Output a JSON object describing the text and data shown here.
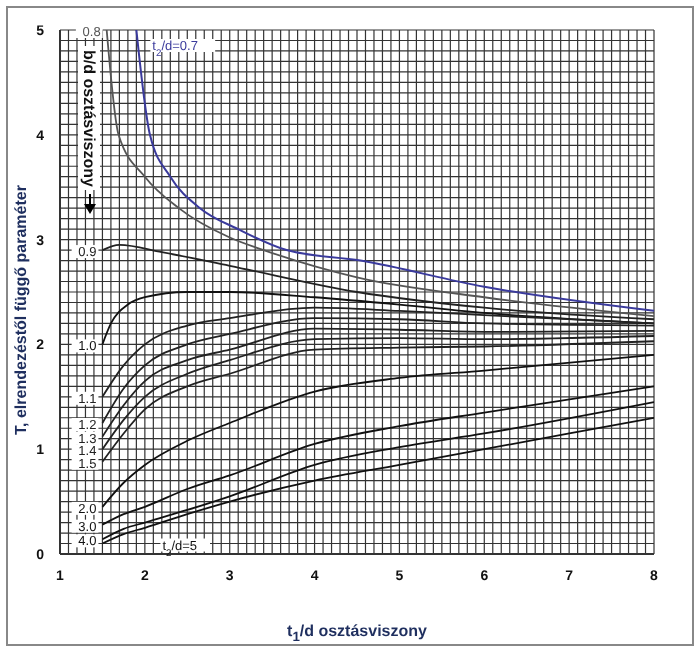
{
  "chart_data": {
    "type": "line",
    "xlabel": "t$_{1}$/d osztásviszony",
    "ylabel": "T, elrendezéstől függő paraméter",
    "annotations": [
      "b/d osztásviszony"
    ],
    "xlim": [
      1,
      8
    ],
    "ylim": [
      0,
      5
    ],
    "grid": true,
    "xticks": [
      1,
      {
        "value": 1.1,
        "label": null
      },
      {
        "value": 1.2,
        "label": null
      },
      {
        "value": 1.3,
        "label": null
      },
      {
        "value": 1.4,
        "label": null
      },
      {
        "value": 1.5,
        "label": null
      },
      {
        "value": 1.6,
        "label": null
      },
      {
        "value": 1.7,
        "label": null
      },
      {
        "value": 1.8,
        "label": null
      },
      {
        "value": 1.9,
        "label": null
      },
      2,
      {
        "value": 2.1,
        "label": null
      },
      {
        "value": 2.2,
        "label": null
      },
      {
        "value": 2.3,
        "label": null
      },
      {
        "value": 2.4,
        "label": null
      },
      {
        "value": 2.5,
        "label": null
      },
      {
        "value": 2.6,
        "label": null
      },
      {
        "value": 2.7,
        "label": null
      },
      {
        "value": 2.8,
        "label": null
      },
      {
        "value": 2.9,
        "label": null
      },
      3,
      {
        "value": 3.1,
        "label": null
      },
      {
        "value": 3.2,
        "label": null
      },
      {
        "value": 3.3,
        "label": null
      },
      {
        "value": 3.4,
        "label": null
      },
      {
        "value": 3.5,
        "label": null
      },
      {
        "value": 3.6,
        "label": null
      },
      {
        "value": 3.7,
        "label": null
      },
      {
        "value": 3.8,
        "label": null
      },
      {
        "value": 3.9,
        "label": null
      },
      4,
      {
        "value": 4.1,
        "label": null
      },
      {
        "value": 4.2,
        "label": null
      },
      {
        "value": 4.3,
        "label": null
      },
      {
        "value": 4.4,
        "label": null
      },
      {
        "value": 4.5,
        "label": null
      },
      {
        "value": 4.6,
        "label": null
      },
      {
        "value": 4.7,
        "label": null
      },
      {
        "value": 4.8,
        "label": null
      },
      {
        "value": 4.9,
        "label": null
      },
      5,
      {
        "value": 5.1,
        "label": null
      },
      {
        "value": 5.2,
        "label": null
      },
      {
        "value": 5.3,
        "label": null
      },
      {
        "value": 5.4,
        "label": null
      },
      {
        "value": 5.5,
        "label": null
      },
      {
        "value": 5.6,
        "label": null
      },
      {
        "value": 5.7,
        "label": null
      },
      {
        "value": 5.8,
        "label": null
      },
      {
        "value": 5.9,
        "label": null
      },
      6,
      {
        "value": 6.1,
        "label": null
      },
      {
        "value": 6.2,
        "label": null
      },
      {
        "value": 6.3,
        "label": null
      },
      {
        "value": 6.4,
        "label": null
      },
      {
        "value": 6.5,
        "label": null
      },
      {
        "value": 6.6,
        "label": null
      },
      {
        "value": 6.7,
        "label": null
      },
      {
        "value": 6.8,
        "label": null
      },
      {
        "value": 6.9,
        "label": null
      },
      7,
      {
        "value": 7.1,
        "label": null
      },
      {
        "value": 7.2,
        "label": null
      },
      {
        "value": 7.3,
        "label": null
      },
      {
        "value": 7.4,
        "label": null
      },
      {
        "value": 7.5,
        "label": null
      },
      {
        "value": 7.6,
        "label": null
      },
      {
        "value": 7.7,
        "label": null
      },
      {
        "value": 7.8,
        "label": null
      },
      {
        "value": 7.9,
        "label": null
      },
      8
    ],
    "yticks": [
      0,
      {
        "value": 0.1,
        "label": null
      },
      {
        "value": 0.2,
        "label": null
      },
      {
        "value": 0.3,
        "label": null
      },
      {
        "value": 0.4,
        "label": null
      },
      {
        "value": 0.5,
        "label": null
      },
      {
        "value": 0.6,
        "label": null
      },
      {
        "value": 0.7,
        "label": null
      },
      {
        "value": 0.8,
        "label": null
      },
      {
        "value": 0.9,
        "label": null
      },
      1,
      {
        "value": 1.1,
        "label": null
      },
      {
        "value": 1.2,
        "label": null
      },
      {
        "value": 1.3,
        "label": null
      },
      {
        "value": 1.4,
        "label": null
      },
      {
        "value": 1.5,
        "label": null
      },
      {
        "value": 1.6,
        "label": null
      },
      {
        "value": 1.7,
        "label": null
      },
      {
        "value": 1.8,
        "label": null
      },
      {
        "value": 1.9,
        "label": null
      },
      2,
      {
        "value": 2.1,
        "label": null
      },
      {
        "value": 2.2,
        "label": null
      },
      {
        "value": 2.3,
        "label": null
      },
      {
        "value": 2.4,
        "label": null
      },
      {
        "value": 2.5,
        "label": null
      },
      {
        "value": 2.6,
        "label": null
      },
      {
        "value": 2.7,
        "label": null
      },
      {
        "value": 2.8,
        "label": null
      },
      {
        "value": 2.9,
        "label": null
      },
      3,
      {
        "value": 3.1,
        "label": null
      },
      {
        "value": 3.2,
        "label": null
      },
      {
        "value": 3.3,
        "label": null
      },
      {
        "value": 3.4,
        "label": null
      },
      {
        "value": 3.5,
        "label": null
      },
      {
        "value": 3.6,
        "label": null
      },
      {
        "value": 3.7,
        "label": null
      },
      {
        "value": 3.8,
        "label": null
      },
      {
        "value": 3.9,
        "label": null
      },
      4,
      {
        "value": 4.1,
        "label": null
      },
      {
        "value": 4.2,
        "label": null
      },
      {
        "value": 4.3,
        "label": null
      },
      {
        "value": 4.4,
        "label": null
      },
      {
        "value": 4.5,
        "label": null
      },
      {
        "value": 4.6,
        "label": null
      },
      {
        "value": 4.7,
        "label": null
      },
      {
        "value": 4.8,
        "label": null
      },
      {
        "value": 4.9,
        "label": null
      },
      5
    ],
    "series": [
      {
        "name": "t$_{2}$/d=0.7",
        "color": "#3a3a9c",
        "x": [
          1.9,
          2.06,
          2.3,
          2.65,
          3.1,
          3.67,
          4.54,
          6,
          8
        ],
        "values": [
          5,
          4,
          3.6,
          3.3,
          3.1,
          2.9,
          2.8,
          2.55,
          2.32
        ]
      },
      {
        "name": "0.8",
        "color": "#555555",
        "x": [
          1.55,
          1.69,
          2.0,
          2.4,
          3.0,
          3.4,
          4.5,
          6,
          8
        ],
        "values": [
          5,
          4,
          3.6,
          3.3,
          3.02,
          2.9,
          2.64,
          2.45,
          2.27
        ]
      },
      {
        "name": "0.9",
        "color": "#222222",
        "x": [
          1.5,
          1.7,
          2.2,
          3,
          4.5,
          6,
          8
        ],
        "values": [
          2.9,
          2.95,
          2.88,
          2.75,
          2.5,
          2.35,
          2.24
        ]
      },
      {
        "name": "1.0",
        "color": "#111111",
        "x": [
          1.5,
          1.6,
          1.8,
          2,
          2.5,
          3,
          4,
          5,
          6,
          8
        ],
        "values": [
          2.0,
          2.2,
          2.38,
          2.45,
          2.5,
          2.5,
          2.45,
          2.38,
          2.3,
          2.2
        ]
      },
      {
        "name": "1.1",
        "color": "#222222",
        "x": [
          1.5,
          1.75,
          2,
          2.5,
          3,
          4,
          5,
          6,
          8
        ],
        "values": [
          1.5,
          1.8,
          2.0,
          2.18,
          2.25,
          2.35,
          2.32,
          2.28,
          2.2
        ]
      },
      {
        "name": "1.2",
        "color": "#222222",
        "x": [
          1.5,
          1.75,
          2,
          2.5,
          3,
          4,
          5,
          6,
          8
        ],
        "values": [
          1.25,
          1.58,
          1.8,
          2.0,
          2.1,
          2.25,
          2.24,
          2.2,
          2.18
        ]
      },
      {
        "name": "1.3",
        "color": "#222222",
        "x": [
          1.5,
          1.75,
          2,
          2.5,
          3,
          4,
          5,
          6,
          8
        ],
        "values": [
          1.12,
          1.42,
          1.65,
          1.85,
          1.95,
          2.15,
          2.14,
          2.12,
          2.13
        ]
      },
      {
        "name": "1.4",
        "color": "#222222",
        "x": [
          1.5,
          1.75,
          2,
          2.5,
          3,
          4,
          5,
          6,
          8
        ],
        "values": [
          1.0,
          1.28,
          1.5,
          1.72,
          1.85,
          2.05,
          2.06,
          2.05,
          2.08
        ]
      },
      {
        "name": "1.5",
        "color": "#222222",
        "x": [
          1.5,
          1.75,
          2,
          2.5,
          3,
          4,
          5,
          6,
          8
        ],
        "values": [
          0.88,
          1.15,
          1.38,
          1.6,
          1.72,
          1.95,
          1.97,
          1.98,
          2.03
        ]
      },
      {
        "name": "2.0",
        "color": "#111111",
        "x": [
          1.5,
          1.75,
          2,
          2.5,
          3,
          4,
          5,
          6,
          8
        ],
        "values": [
          0.45,
          0.68,
          0.85,
          1.08,
          1.25,
          1.55,
          1.68,
          1.75,
          1.9
        ]
      },
      {
        "name": "3.0",
        "color": "#111111",
        "x": [
          1.5,
          1.75,
          2,
          2.5,
          3,
          4,
          5,
          6,
          8
        ],
        "values": [
          0.28,
          0.38,
          0.45,
          0.62,
          0.75,
          1.05,
          1.22,
          1.35,
          1.6
        ]
      },
      {
        "name": "4.0",
        "color": "#111111",
        "x": [
          1.5,
          1.75,
          2,
          2.5,
          3,
          4,
          5,
          6,
          8
        ],
        "values": [
          0.14,
          0.24,
          0.3,
          0.42,
          0.55,
          0.85,
          1.02,
          1.15,
          1.45
        ]
      },
      {
        "name": "t$_{2}$/d=5",
        "color": "#111111",
        "x": [
          1.5,
          1.75,
          2,
          2.5,
          3,
          4,
          5,
          6,
          8
        ],
        "values": [
          0.1,
          0.19,
          0.25,
          0.38,
          0.5,
          0.7,
          0.85,
          1.0,
          1.3
        ]
      }
    ]
  }
}
